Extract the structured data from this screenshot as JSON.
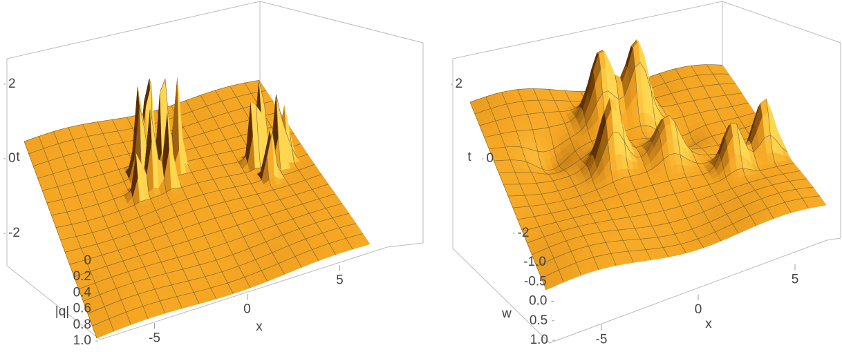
{
  "chart_data": [
    {
      "type": "surface3d",
      "x_label": "x",
      "t_label": "t",
      "z_label": "|q|",
      "xlim": [
        -7,
        7
      ],
      "xticks": [
        -5,
        0,
        5
      ],
      "tlim": [
        -3,
        3
      ],
      "tticks": [
        -2,
        0,
        2
      ],
      "zlim": [
        0,
        1
      ],
      "zticks": [
        0,
        0.2,
        0.4,
        0.6,
        0.8,
        {
          "value": 1,
          "label": "1.0"
        }
      ],
      "color": "#f5a623",
      "mesh": true
    },
    {
      "type": "surface3d",
      "x_label": "x",
      "t_label": "t",
      "z_label": "w",
      "xlim": [
        -7,
        7
      ],
      "xticks": [
        -5,
        0,
        5
      ],
      "tlim": [
        -3,
        3
      ],
      "tticks": [
        -2,
        0,
        2
      ],
      "zlim": [
        -1,
        1
      ],
      "zticks": [
        {
          "value": -1,
          "label": "-1.0"
        },
        -0.5,
        {
          "value": 0,
          "label": "0.0"
        },
        0.5,
        {
          "value": 1,
          "label": "1.0"
        }
      ],
      "color": "#f5a623",
      "mesh": true
    }
  ]
}
